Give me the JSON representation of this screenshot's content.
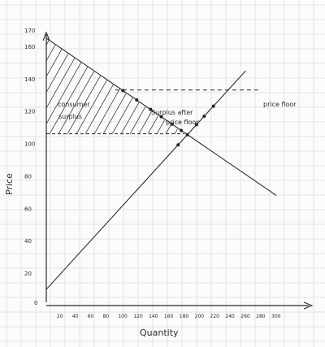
{
  "axes": {
    "y_label": "Price",
    "x_label": "Quantity",
    "origin_label": "0",
    "y_ticks": [
      "170",
      "160",
      "140",
      "120",
      "100",
      "80",
      "60",
      "40",
      "20"
    ],
    "x_ticks": [
      "20",
      "40",
      "60",
      "80",
      "100",
      "120",
      "140",
      "160",
      "180",
      "200",
      "220",
      "240",
      "260",
      "280",
      "300"
    ]
  },
  "annotations": {
    "consumer_surplus_line1": "consumer",
    "consumer_surplus_line2": "surplus",
    "surplus_after_line1": "Surplus after",
    "surplus_after_line2": "price floor",
    "price_floor": "price floor"
  },
  "model": {
    "demand": {
      "price_at_zero_qty": 165,
      "price_at_300": 68
    },
    "supply": {
      "price_at_zero_qty": 10,
      "price_at_270": 150
    },
    "equilibrium": {
      "quantity": 180,
      "price": 106
    },
    "price_floor": 133,
    "consumer_surplus_bounds": {
      "top_price": 165,
      "bottom_price": 106
    }
  }
}
